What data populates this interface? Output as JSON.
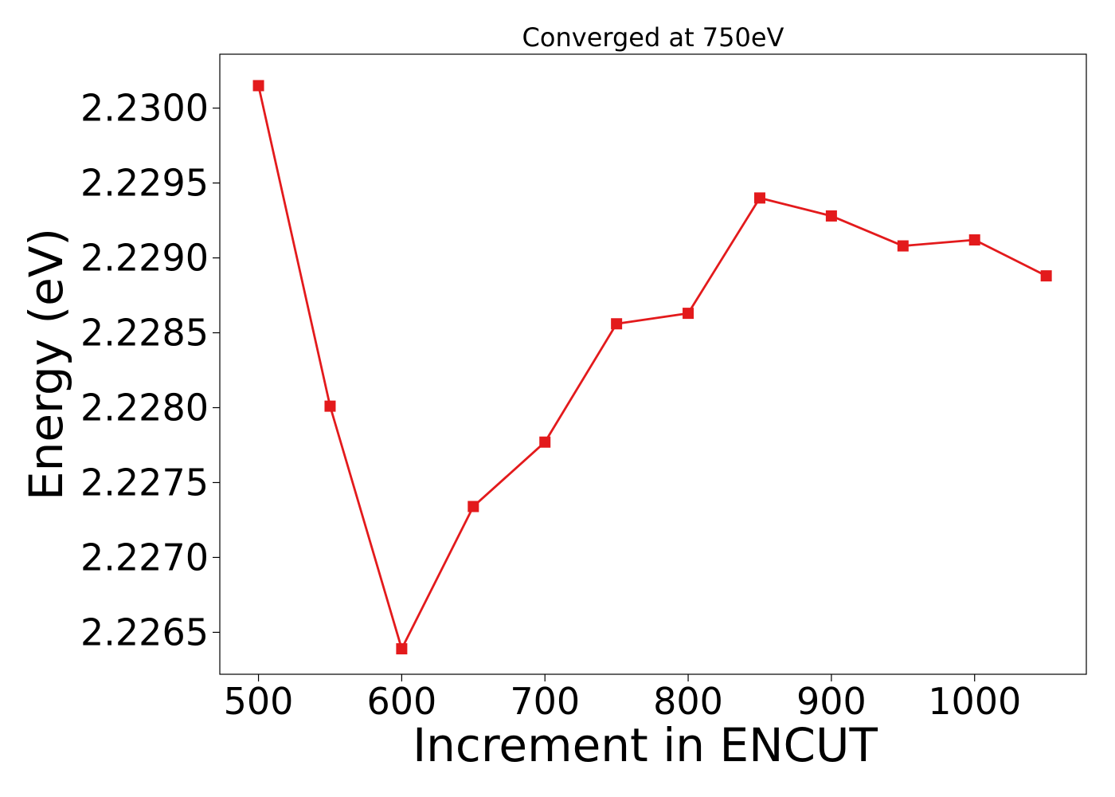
{
  "chart_data": {
    "type": "line",
    "title": "Converged at 750eV",
    "xlabel": "Increment in ENCUT",
    "ylabel": "Energy (eV)",
    "xlim": [
      473,
      1078
    ],
    "ylim": [
      2.22622,
      2.23036
    ],
    "x_ticks": [
      500,
      600,
      700,
      800,
      900,
      1000
    ],
    "x_tick_labels": [
      "500",
      "600",
      "700",
      "800",
      "900",
      "1000"
    ],
    "y_ticks": [
      2.2265,
      2.227,
      2.2275,
      2.228,
      2.2285,
      2.229,
      2.2295,
      2.23
    ],
    "y_tick_labels": [
      "2.2265",
      "2.2270",
      "2.2275",
      "2.2280",
      "2.2285",
      "2.2290",
      "2.2295",
      "2.2300"
    ],
    "grid": false,
    "series": [
      {
        "color": "#e31a1c",
        "marker": "square",
        "x": [
          500,
          550,
          600,
          650,
          700,
          750,
          800,
          850,
          900,
          950,
          1000,
          1050
        ],
        "y": [
          2.23015,
          2.22801,
          2.22639,
          2.22734,
          2.22777,
          2.22856,
          2.22863,
          2.2294,
          2.22928,
          2.22908,
          2.22912,
          2.22888
        ]
      }
    ]
  }
}
